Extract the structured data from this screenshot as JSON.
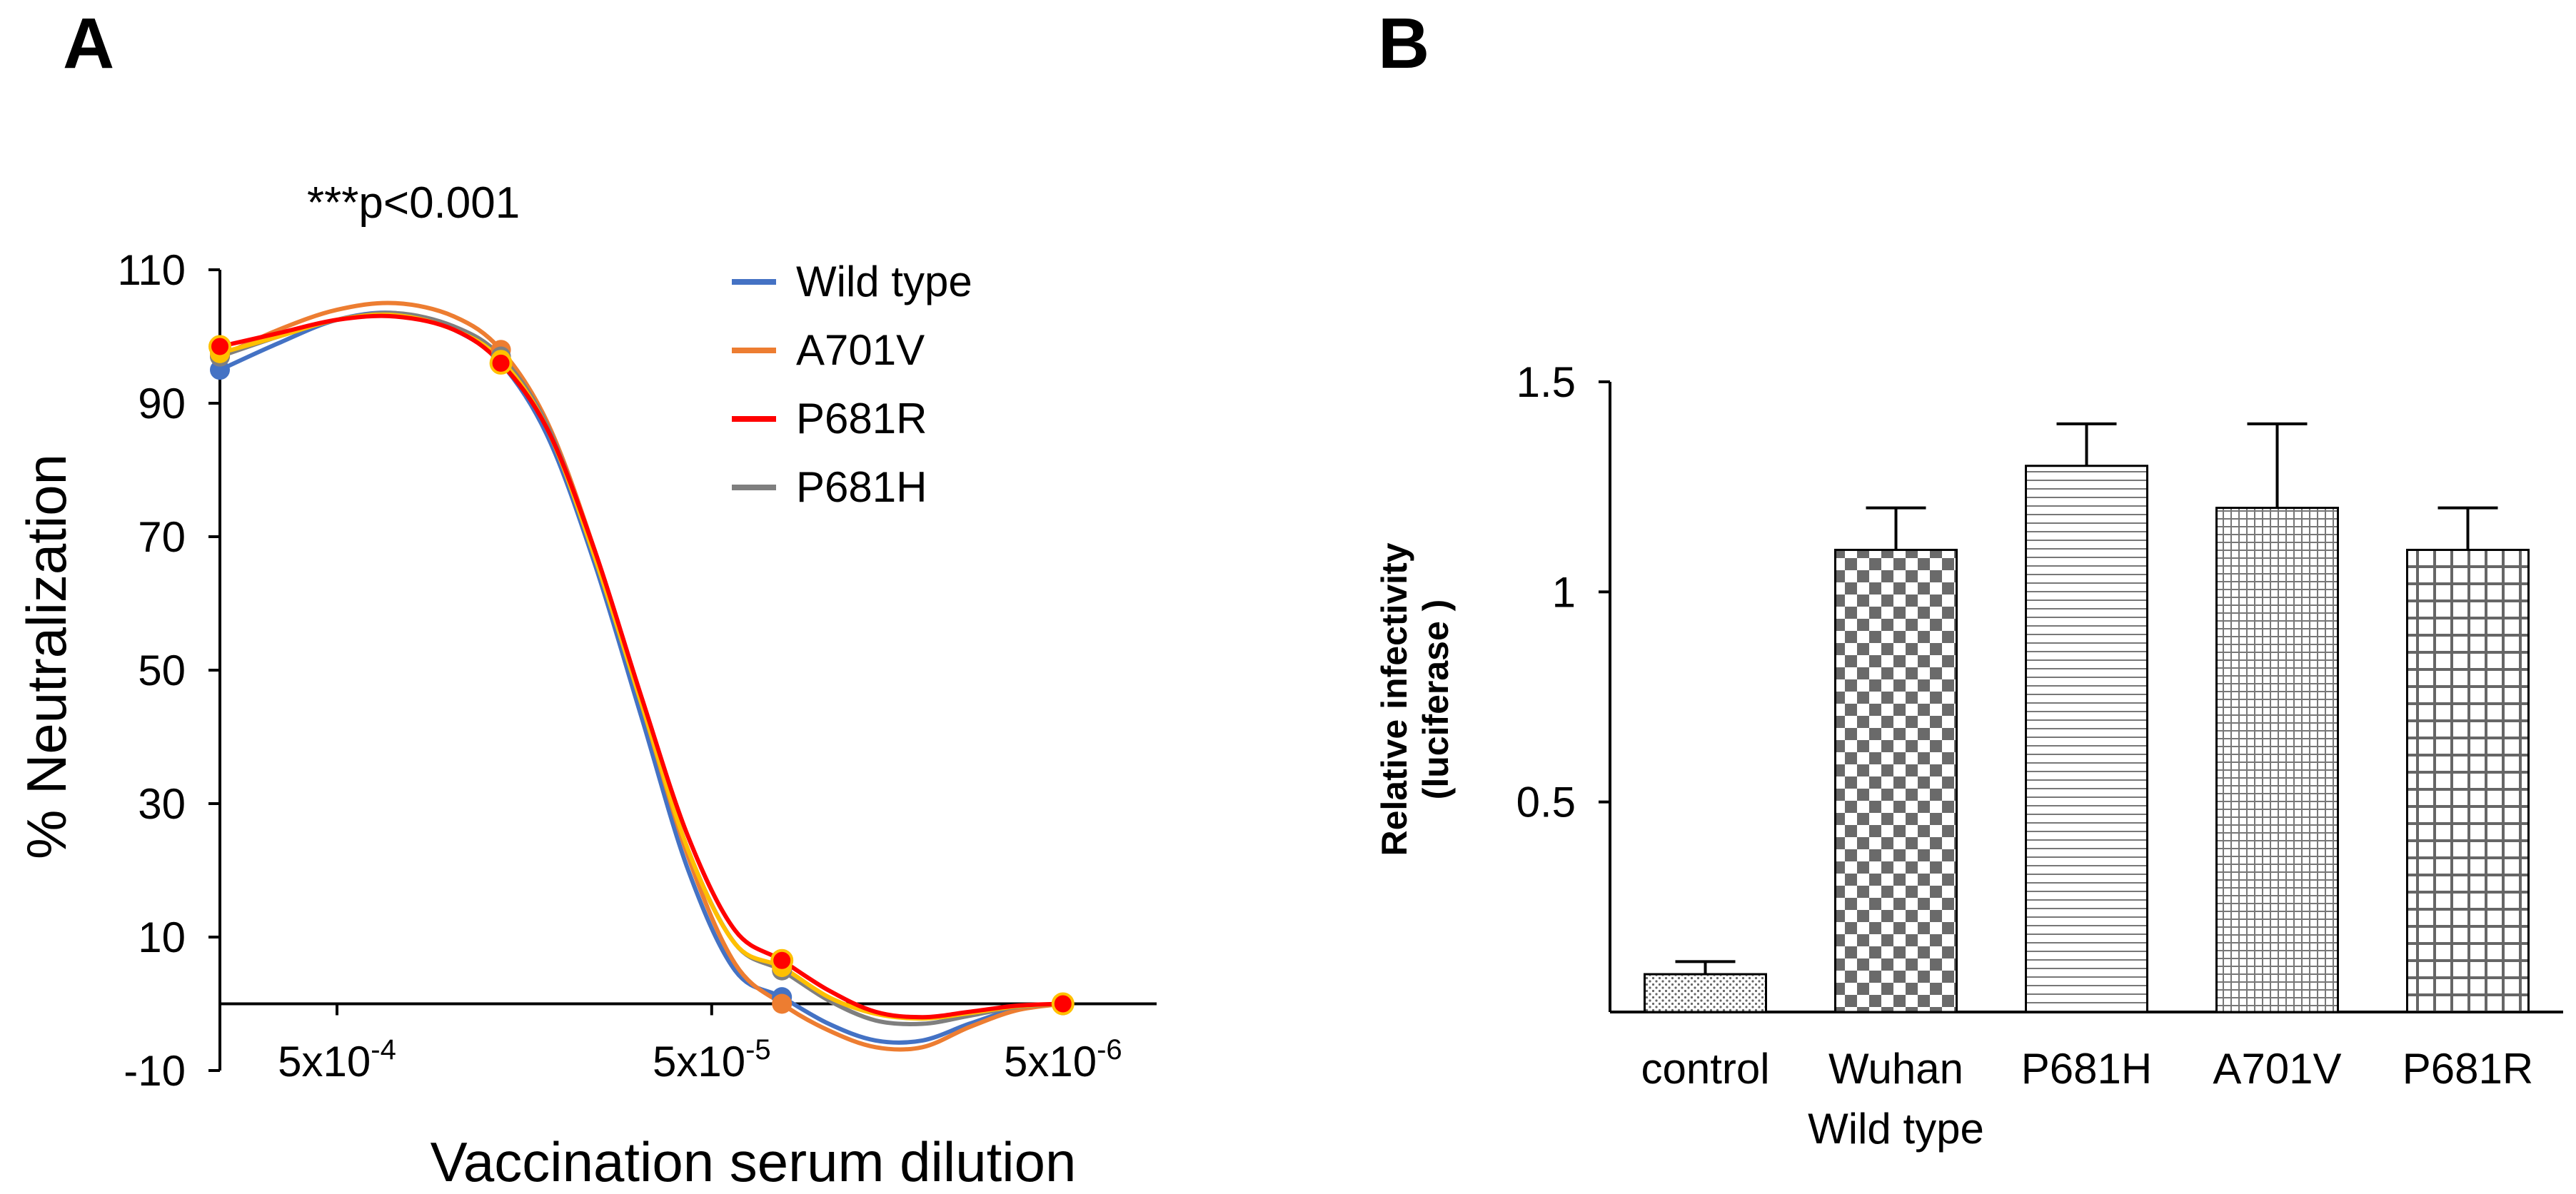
{
  "chart_data": [
    {
      "panel": "A",
      "type": "line",
      "title": "",
      "annotation": "***p<0.001",
      "xlabel": "Vaccination serum dilution",
      "ylabel": "% Neutralization",
      "ylim": [
        -10,
        110
      ],
      "yticks": [
        -10,
        10,
        30,
        50,
        70,
        90,
        110
      ],
      "xticks": [
        {
          "pos": 0.5,
          "base": "5x10",
          "exp": "-4"
        },
        {
          "pos": 2.1,
          "base": "5x10",
          "exp": "-5"
        },
        {
          "pos": 3.6,
          "base": "5x10",
          "exp": "-6"
        }
      ],
      "xlim": [
        0,
        4
      ],
      "x": [
        0,
        1.2,
        2.4,
        3.6
      ],
      "legend_position": "top-right",
      "series": [
        {
          "name": "Wild type",
          "color": "#4472C4",
          "values": [
            95,
            96,
            1,
            0
          ],
          "curve": [
            [
              0,
              95
            ],
            [
              0.25,
              99
            ],
            [
              0.5,
              102.5
            ],
            [
              0.75,
              103.5
            ],
            [
              1.0,
              101
            ],
            [
              1.2,
              96
            ],
            [
              1.4,
              85
            ],
            [
              1.6,
              66
            ],
            [
              1.8,
              43
            ],
            [
              2.0,
              20
            ],
            [
              2.2,
              5
            ],
            [
              2.4,
              1
            ],
            [
              2.6,
              -3
            ],
            [
              2.8,
              -5.5
            ],
            [
              3.0,
              -5.5
            ],
            [
              3.2,
              -3
            ],
            [
              3.4,
              -0.8
            ],
            [
              3.6,
              0
            ]
          ]
        },
        {
          "name": "A701V",
          "color": "#ED7D31",
          "values": [
            97,
            98,
            0,
            0
          ],
          "curve": [
            [
              0,
              97
            ],
            [
              0.25,
              101
            ],
            [
              0.5,
              104
            ],
            [
              0.75,
              105
            ],
            [
              1.0,
              103
            ],
            [
              1.2,
              98
            ],
            [
              1.4,
              87
            ],
            [
              1.6,
              68
            ],
            [
              1.8,
              45
            ],
            [
              2.0,
              22
            ],
            [
              2.2,
              6
            ],
            [
              2.4,
              0
            ],
            [
              2.6,
              -4
            ],
            [
              2.8,
              -6.5
            ],
            [
              3.0,
              -6.5
            ],
            [
              3.2,
              -3.5
            ],
            [
              3.4,
              -1
            ],
            [
              3.6,
              0
            ]
          ]
        },
        {
          "name": "P681R",
          "color": "#FF0000",
          "values": [
            98.5,
            96,
            6.5,
            0
          ],
          "curve": [
            [
              0,
              98.5
            ],
            [
              0.25,
              100.5
            ],
            [
              0.5,
              102.5
            ],
            [
              0.75,
              103
            ],
            [
              1.0,
              101
            ],
            [
              1.2,
              96
            ],
            [
              1.4,
              86
            ],
            [
              1.6,
              68
            ],
            [
              1.8,
              46
            ],
            [
              2.0,
              25
            ],
            [
              2.2,
              11
            ],
            [
              2.4,
              6.5
            ],
            [
              2.6,
              2
            ],
            [
              2.8,
              -1.2
            ],
            [
              3.0,
              -2
            ],
            [
              3.2,
              -1.2
            ],
            [
              3.4,
              -0.3
            ],
            [
              3.6,
              0
            ]
          ]
        },
        {
          "name": "P681H",
          "color": "#7F7F7F",
          "values": [
            97,
            97,
            5,
            0
          ],
          "curve": [
            [
              0,
              97
            ],
            [
              0.25,
              100
            ],
            [
              0.5,
              102.5
            ],
            [
              0.75,
              103.5
            ],
            [
              1.0,
              101.5
            ],
            [
              1.2,
              97
            ],
            [
              1.4,
              86.5
            ],
            [
              1.6,
              67.5
            ],
            [
              1.8,
              45
            ],
            [
              2.0,
              23
            ],
            [
              2.2,
              9
            ],
            [
              2.4,
              5
            ],
            [
              2.6,
              0.5
            ],
            [
              2.8,
              -2.5
            ],
            [
              3.0,
              -3
            ],
            [
              3.2,
              -1.8
            ],
            [
              3.4,
              -0.5
            ],
            [
              3.6,
              0
            ]
          ]
        },
        {
          "name": "",
          "color": "#FFC000",
          "values": [
            97.5,
            96.5,
            5.5,
            0
          ],
          "curve": [
            [
              0,
              97.5
            ],
            [
              0.25,
              100
            ],
            [
              0.5,
              102.5
            ],
            [
              0.75,
              103.2
            ],
            [
              1.0,
              101
            ],
            [
              1.2,
              96.5
            ],
            [
              1.4,
              86
            ],
            [
              1.6,
              67
            ],
            [
              1.8,
              45
            ],
            [
              2.0,
              23
            ],
            [
              2.2,
              9
            ],
            [
              2.4,
              5.5
            ],
            [
              2.6,
              1
            ],
            [
              2.8,
              -1.5
            ],
            [
              3.0,
              -2.2
            ],
            [
              3.2,
              -1.4
            ],
            [
              3.4,
              -0.4
            ],
            [
              3.6,
              0
            ]
          ]
        }
      ]
    },
    {
      "panel": "B",
      "type": "bar",
      "title": "",
      "xlabel": "",
      "ylabel_line1": "Relative infectivity",
      "ylabel_line2": "(luciferase )",
      "ylim": [
        0,
        1.5
      ],
      "yticks": [
        {
          "value": 0.5,
          "label": "0.5"
        },
        {
          "value": 1,
          "label": "1"
        },
        {
          "value": 1.5,
          "label": "1.5"
        }
      ],
      "categories": [
        {
          "line1": "control",
          "line2": ""
        },
        {
          "line1": "Wuhan",
          "line2": "Wild type"
        },
        {
          "line1": "P681H",
          "line2": ""
        },
        {
          "line1": "A701V",
          "line2": ""
        },
        {
          "line1": "P681R",
          "line2": ""
        }
      ],
      "values": [
        0.09,
        1.1,
        1.3,
        1.2,
        1.1
      ],
      "errors": [
        0.03,
        0.1,
        0.1,
        0.2,
        0.1
      ],
      "patterns": [
        "dots",
        "checker",
        "hlines",
        "finegrid",
        "grid"
      ]
    }
  ],
  "panels": {
    "a_label": "A",
    "b_label": "B"
  }
}
